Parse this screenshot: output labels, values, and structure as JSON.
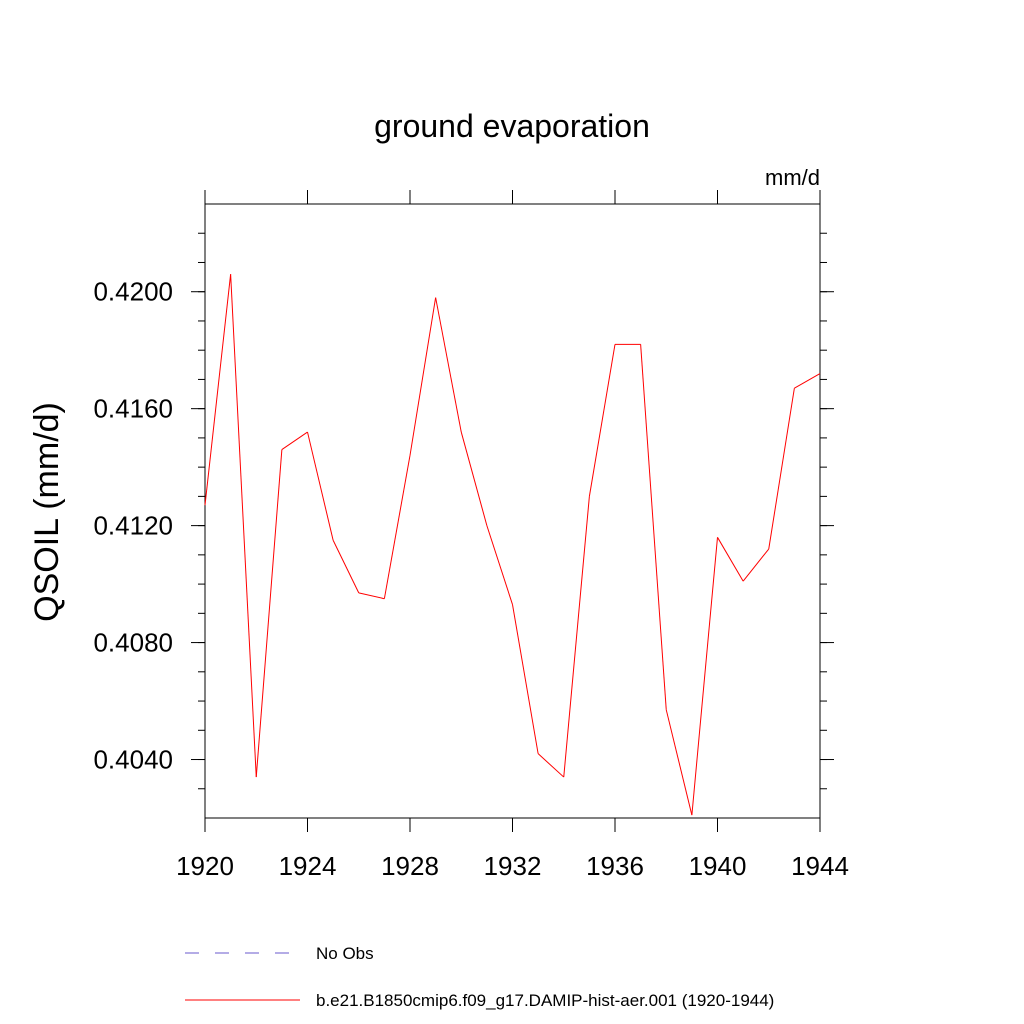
{
  "chart_data": {
    "type": "line",
    "title": "ground evaporation",
    "units": "mm/d",
    "ylabel": "QSOIL  (mm/d)",
    "xlabel": "",
    "xlim": [
      1920,
      1944
    ],
    "ylim": [
      0.402,
      0.423
    ],
    "xticks": [
      "1920",
      "1924",
      "1928",
      "1932",
      "1936",
      "1940",
      "1944"
    ],
    "yticks": [
      "0.4040",
      "0.4080",
      "0.4120",
      "0.4160",
      "0.4200"
    ],
    "grid": false,
    "legend_position": "bottom",
    "series": [
      {
        "name": "b.e21.B1850cmip6.f09_g17.DAMIP-hist-aer.001 (1920-1944)",
        "color": "#ff0000",
        "style": "solid",
        "x": [
          1920,
          1921,
          1922,
          1923,
          1924,
          1925,
          1926,
          1927,
          1928,
          1929,
          1930,
          1931,
          1932,
          1933,
          1934,
          1935,
          1936,
          1937,
          1938,
          1939,
          1940,
          1941,
          1942,
          1943,
          1944
        ],
        "values": [
          0.4127,
          0.4206,
          0.4034,
          0.4146,
          0.4152,
          0.4115,
          0.4097,
          0.4095,
          0.4144,
          0.4198,
          0.4152,
          0.412,
          0.4093,
          0.4042,
          0.4034,
          0.413,
          0.4182,
          0.4182,
          0.4057,
          0.4021,
          0.4116,
          0.4101,
          0.4112,
          0.4167,
          0.4172
        ]
      },
      {
        "name": "No Obs",
        "color": "#6a5acd",
        "style": "dashed",
        "x": [],
        "values": []
      }
    ]
  }
}
